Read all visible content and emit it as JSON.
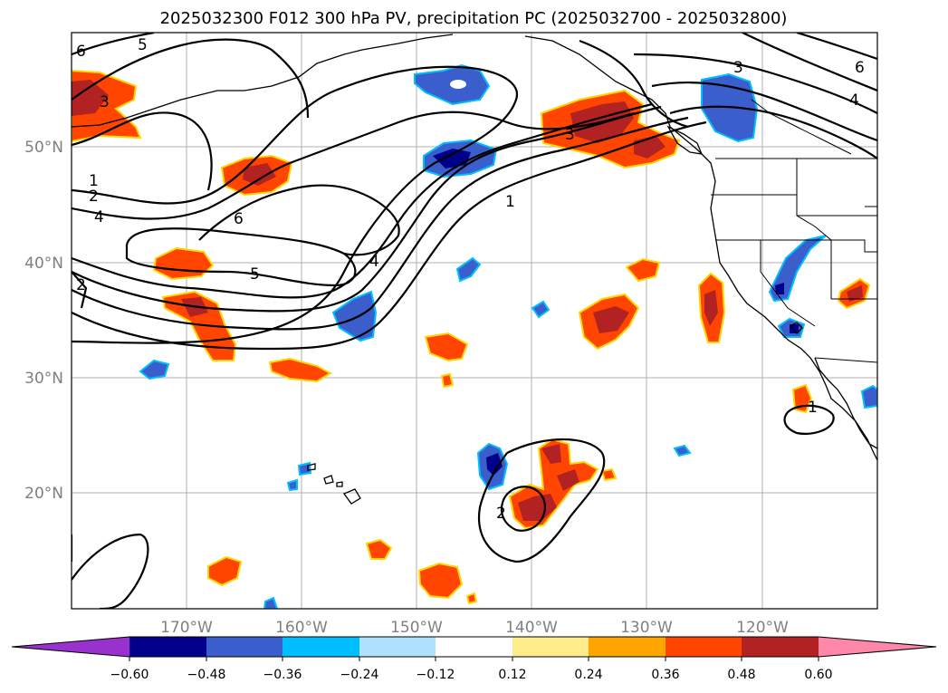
{
  "title": "2025032300 F012 300 hPa PV, precipitation PC (2025032700 - 2025032800)",
  "lon_labels": [
    "170°W",
    "160°W",
    "150°W",
    "140°W",
    "130°W",
    "120°W"
  ],
  "lat_labels": [
    "50°N",
    "40°N",
    "30°N",
    "20°N"
  ],
  "contour_labels": [
    "6",
    "5",
    "3",
    "1",
    "2",
    "4",
    "6",
    "5",
    "4",
    "2",
    "1",
    "3",
    "6",
    "4",
    "3",
    "2",
    "1"
  ],
  "colorbar": {
    "ticks": [
      "−0.60",
      "−0.48",
      "−0.36",
      "−0.24",
      "−0.12",
      "0.12",
      "0.24",
      "0.36",
      "0.48",
      "0.60"
    ],
    "colors": [
      "#9932cc",
      "#00008b",
      "#3a5fcd",
      "#00bfff",
      "#b0e2ff",
      "#ffffff",
      "#ffec8b",
      "#ffa500",
      "#ff4500",
      "#b22222",
      "#ff88aa"
    ]
  },
  "colors": {
    "neg_light": "#00bfff",
    "neg_mid": "#3a5fcd",
    "neg_dark": "#00008b",
    "pos_light": "#ffd700",
    "pos_mid": "#ff4500",
    "pos_dark": "#b22222"
  }
}
